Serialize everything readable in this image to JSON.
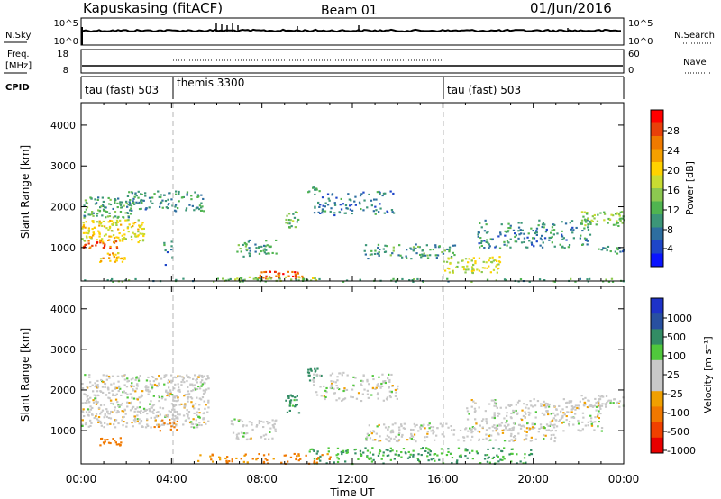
{
  "header": {
    "site": "Kapuskasing (fitACF)",
    "beam": "Beam 01",
    "date": "01/Jun/2016"
  },
  "top_panels": {
    "nsky_label": "N.Sky",
    "nsky_ticks_left": [
      "10^5",
      "10^0"
    ],
    "nsky_ticks_right": [
      "10^5",
      "10^0"
    ],
    "nsearch_label": "N.Search",
    "freq_label_line1": "Freq.",
    "freq_label_line2": "[MHz]",
    "freq_ticks": [
      "18",
      "8"
    ],
    "nave_label": "Nave",
    "nave_ticks": [
      "60",
      "0"
    ],
    "cpid_label": "CPID",
    "cpid_segments": [
      {
        "label": "tau (fast) 503",
        "start_hour": 0,
        "end_hour": 4
      },
      {
        "label": "themis 3300",
        "start_hour": 4,
        "end_hour": 16
      },
      {
        "label": "tau (fast) 503",
        "start_hour": 16,
        "end_hour": 24
      }
    ]
  },
  "colorbars": {
    "power": {
      "label": "Power [dB]",
      "ticks": [
        "28",
        "24",
        "20",
        "16",
        "12",
        "8",
        "4"
      ],
      "colors": [
        "#ff0000",
        "#e8400a",
        "#f07a00",
        "#f5a000",
        "#ffd200",
        "#c8dc32",
        "#8cc850",
        "#50b450",
        "#3c9678",
        "#2d6ea0",
        "#1e46c8",
        "#0a14ff"
      ]
    },
    "velocity": {
      "label": "Velocity [m s⁻¹]",
      "ticks": [
        "1000",
        "500",
        "100",
        "25",
        "-25",
        "-100",
        "-500",
        "-1000"
      ],
      "colors": [
        "#1e32c8",
        "#2850a0",
        "#328c64",
        "#50c83c",
        "#c8c8c8",
        "#c8c8c8",
        "#f0a000",
        "#f07800",
        "#f04000",
        "#e80000"
      ]
    }
  },
  "x_axis": {
    "label": "Time UT",
    "ticks": [
      "00:00",
      "04:00",
      "08:00",
      "12:00",
      "16:00",
      "20:00",
      "00:00"
    ]
  },
  "chart_data": [
    {
      "type": "heatmap",
      "name": "power",
      "ylabel": "Slant Range [km]",
      "xlabel": "",
      "xlim_hours": [
        0,
        24
      ],
      "ylim": [
        180,
        4550
      ],
      "y_ticks": [
        1000,
        2000,
        3000,
        4000
      ],
      "vertical_marker_hours": [
        4,
        16
      ],
      "regions": [
        {
          "t0": 0.0,
          "t1": 2.2,
          "r0": 1750,
          "r1": 2250,
          "level": 10,
          "density": 0.8
        },
        {
          "t0": 0.0,
          "t1": 2.8,
          "r0": 1150,
          "r1": 1700,
          "level": 18,
          "density": 0.85
        },
        {
          "t0": 0.0,
          "t1": 1.6,
          "r0": 1000,
          "r1": 1200,
          "level": 26,
          "density": 0.8
        },
        {
          "t0": 0.8,
          "t1": 2.0,
          "r0": 650,
          "r1": 900,
          "level": 20,
          "density": 0.8
        },
        {
          "t0": 2.0,
          "t1": 5.4,
          "r0": 1900,
          "r1": 2400,
          "level": 8,
          "density": 0.6
        },
        {
          "t0": 3.6,
          "t1": 4.1,
          "r0": 600,
          "r1": 1200,
          "level": 6,
          "density": 0.3
        },
        {
          "t0": 6.8,
          "t1": 8.6,
          "r0": 800,
          "r1": 1200,
          "level": 9,
          "density": 0.6
        },
        {
          "t0": 7.8,
          "t1": 9.8,
          "r0": 260,
          "r1": 450,
          "level": 27,
          "density": 0.9
        },
        {
          "t0": 6.2,
          "t1": 10.5,
          "r0": 200,
          "r1": 300,
          "level": 14,
          "density": 0.6
        },
        {
          "t0": 9.0,
          "t1": 9.6,
          "r0": 1500,
          "r1": 1900,
          "level": 12,
          "density": 0.8
        },
        {
          "t0": 10.0,
          "t1": 10.6,
          "r0": 2300,
          "r1": 2500,
          "level": 10,
          "density": 0.85
        },
        {
          "t0": 10.2,
          "t1": 13.8,
          "r0": 1800,
          "r1": 2400,
          "level": 6,
          "density": 0.4
        },
        {
          "t0": 12.5,
          "t1": 16.5,
          "r0": 750,
          "r1": 1100,
          "level": 9,
          "density": 0.55
        },
        {
          "t0": 16.0,
          "t1": 18.5,
          "r0": 400,
          "r1": 800,
          "level": 16,
          "density": 0.7
        },
        {
          "t0": 17.5,
          "t1": 22.5,
          "r0": 1000,
          "r1": 1700,
          "level": 7,
          "density": 0.45
        },
        {
          "t0": 22.0,
          "t1": 24.0,
          "r0": 1550,
          "r1": 1900,
          "level": 13,
          "density": 0.8
        },
        {
          "t0": 22.8,
          "t1": 24.0,
          "r0": 850,
          "r1": 1050,
          "level": 8,
          "density": 0.7
        },
        {
          "t0": 0.0,
          "t1": 24.0,
          "r0": 180,
          "r1": 260,
          "level": 10,
          "density": 0.45
        }
      ]
    },
    {
      "type": "heatmap",
      "name": "velocity",
      "ylabel": "Slant Range [km]",
      "xlabel": "Time UT",
      "xlim_hours": [
        0,
        24
      ],
      "ylim": [
        180,
        4550
      ],
      "y_ticks": [
        1000,
        2000,
        3000,
        4000
      ],
      "vertical_marker_hours": [
        4,
        16
      ],
      "regions": [
        {
          "t0": 0.0,
          "t1": 5.6,
          "r0": 1100,
          "r1": 2400,
          "vel": 0,
          "density": 0.75
        },
        {
          "t0": 0.8,
          "t1": 1.8,
          "r0": 650,
          "r1": 850,
          "vel": -300,
          "density": 0.9
        },
        {
          "t0": 3.2,
          "t1": 4.3,
          "r0": 1000,
          "r1": 1300,
          "vel": -200,
          "density": 0.4
        },
        {
          "t0": 6.6,
          "t1": 8.6,
          "r0": 800,
          "r1": 1300,
          "vel": 0,
          "density": 0.6
        },
        {
          "t0": 9.0,
          "t1": 9.6,
          "r0": 1450,
          "r1": 1900,
          "vel": 150,
          "density": 0.85
        },
        {
          "t0": 10.0,
          "t1": 10.6,
          "r0": 2250,
          "r1": 2550,
          "vel": 150,
          "density": 0.85
        },
        {
          "t0": 10.2,
          "t1": 14.0,
          "r0": 1750,
          "r1": 2450,
          "vel": 0,
          "density": 0.45
        },
        {
          "t0": 12.5,
          "t1": 21.0,
          "r0": 750,
          "r1": 1200,
          "vel": 0,
          "density": 0.55
        },
        {
          "t0": 10.0,
          "t1": 20.0,
          "r0": 200,
          "r1": 600,
          "vel": 60,
          "density": 0.45
        },
        {
          "t0": 17.0,
          "t1": 23.0,
          "r0": 1000,
          "r1": 1800,
          "vel": 0,
          "density": 0.5
        },
        {
          "t0": 22.0,
          "t1": 24.0,
          "r0": 1600,
          "r1": 1900,
          "vel": 0,
          "density": 0.8
        },
        {
          "t0": 5.0,
          "t1": 11.0,
          "r0": 200,
          "r1": 450,
          "vel": -150,
          "density": 0.4
        }
      ]
    }
  ]
}
